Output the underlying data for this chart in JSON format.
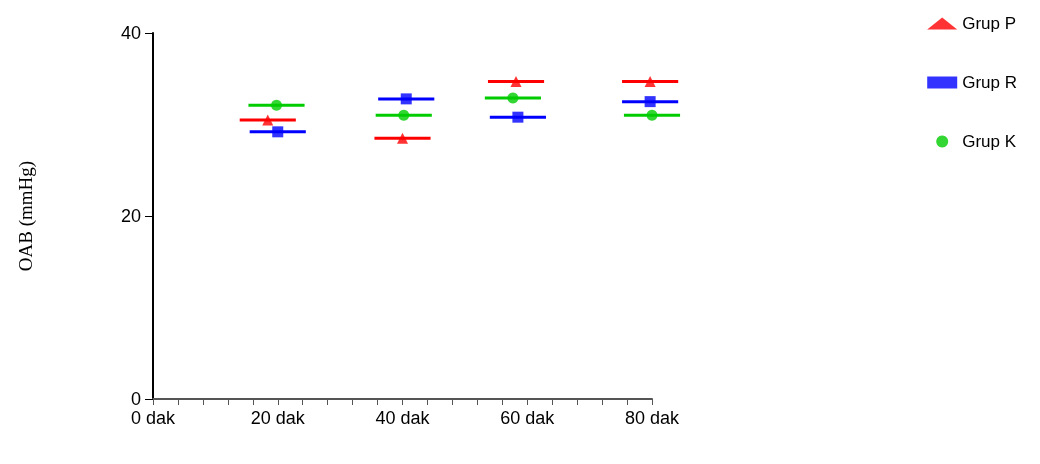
{
  "chart_data": {
    "type": "scatter",
    "ylabel": "OAB (mmHg)",
    "xlim": [
      0,
      80
    ],
    "ylim": [
      0,
      40
    ],
    "yticks": [
      0,
      20,
      40
    ],
    "xticks": [
      {
        "value": 0,
        "label": "0 dak"
      },
      {
        "value": 4,
        "label": null
      },
      {
        "value": 8,
        "label": null
      },
      {
        "value": 12,
        "label": null
      },
      {
        "value": 16,
        "label": null
      },
      {
        "value": 20,
        "label": "20 dak"
      },
      {
        "value": 24,
        "label": null
      },
      {
        "value": 28,
        "label": null
      },
      {
        "value": 32,
        "label": null
      },
      {
        "value": 36,
        "label": null
      },
      {
        "value": 40,
        "label": "40 dak"
      },
      {
        "value": 44,
        "label": null
      },
      {
        "value": 48,
        "label": null
      },
      {
        "value": 52,
        "label": null
      },
      {
        "value": 56,
        "label": null
      },
      {
        "value": 60,
        "label": "60 dak"
      },
      {
        "value": 64,
        "label": null
      },
      {
        "value": 68,
        "label": null
      },
      {
        "value": 72,
        "label": null
      },
      {
        "value": 76,
        "label": null
      },
      {
        "value": 80,
        "label": "80 dak"
      }
    ],
    "grid": false,
    "legend": "top right",
    "series": [
      {
        "name": "Grup P",
        "color": "#ff0000",
        "marker": "triangle",
        "x": [
          18.4,
          40,
          58.2,
          79.7
        ],
        "values": [
          30.5,
          28.5,
          34.7,
          34.7
        ],
        "xerrors": [
          4.5,
          4.5,
          4.5,
          4.5
        ]
      },
      {
        "name": "Grup R",
        "color": "#0000ff",
        "marker": "square",
        "x": [
          20,
          40.6,
          58.5,
          79.7
        ],
        "values": [
          29.2,
          32.8,
          30.8,
          32.5
        ],
        "xerrors": [
          4.5,
          4.5,
          4.5,
          4.5
        ]
      },
      {
        "name": "Grup K",
        "color": "#00cc00",
        "marker": "circle",
        "x": [
          19.8,
          40.2,
          57.7,
          80
        ],
        "values": [
          32.1,
          31,
          32.9,
          31
        ],
        "xerrors": [
          4.5,
          4.5,
          4.5,
          4.5
        ]
      }
    ]
  }
}
